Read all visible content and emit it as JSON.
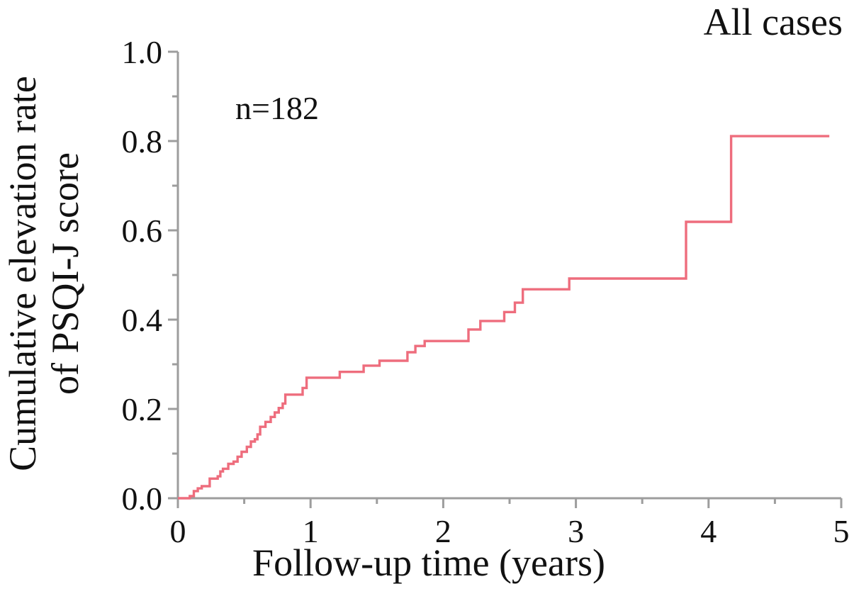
{
  "figure": {
    "title": "All cases",
    "annotation": "n=182",
    "xlabel": "Follow-up time (years)",
    "ylabel_line1": "Cumulative elevation rate",
    "ylabel_line2": "of PSQI-J score"
  },
  "colors": {
    "curve": "#ee6d7d",
    "axis": "#9d9d9d",
    "text": "#111111"
  },
  "chart_data": {
    "type": "line",
    "subtype": "step_post_cumulative_incidence",
    "title": "All cases",
    "annotation": "n=182",
    "xlabel": "Follow-up time (years)",
    "ylabel": "Cumulative elevation rate of PSQI-J score",
    "xlim": [
      0,
      5
    ],
    "ylim": [
      0,
      1
    ],
    "x_tick_labels": [
      "0",
      "1",
      "2",
      "3",
      "4",
      "5"
    ],
    "y_tick_labels": [
      "0.0",
      "0.2",
      "0.4",
      "0.6",
      "0.8",
      "1.0"
    ],
    "x_minor_tick_step": 0.5,
    "y_minor_tick_step": 0.1,
    "grid": false,
    "legend": false,
    "series": [
      {
        "name": "All cases",
        "n": 182,
        "color": "#ee6d7d",
        "step": "post",
        "points": [
          [
            0.0,
            0.0
          ],
          [
            0.09,
            0.005
          ],
          [
            0.12,
            0.016
          ],
          [
            0.15,
            0.022
          ],
          [
            0.18,
            0.027
          ],
          [
            0.24,
            0.044
          ],
          [
            0.3,
            0.049
          ],
          [
            0.32,
            0.06
          ],
          [
            0.34,
            0.066
          ],
          [
            0.38,
            0.077
          ],
          [
            0.42,
            0.082
          ],
          [
            0.45,
            0.093
          ],
          [
            0.48,
            0.104
          ],
          [
            0.52,
            0.115
          ],
          [
            0.55,
            0.127
          ],
          [
            0.58,
            0.132
          ],
          [
            0.6,
            0.143
          ],
          [
            0.62,
            0.16
          ],
          [
            0.66,
            0.171
          ],
          [
            0.7,
            0.182
          ],
          [
            0.73,
            0.192
          ],
          [
            0.76,
            0.202
          ],
          [
            0.79,
            0.212
          ],
          [
            0.81,
            0.232
          ],
          [
            0.94,
            0.247
          ],
          [
            0.97,
            0.27
          ],
          [
            1.22,
            0.283
          ],
          [
            1.4,
            0.297
          ],
          [
            1.52,
            0.308
          ],
          [
            1.73,
            0.327
          ],
          [
            1.79,
            0.341
          ],
          [
            1.86,
            0.352
          ],
          [
            2.19,
            0.378
          ],
          [
            2.28,
            0.397
          ],
          [
            2.46,
            0.417
          ],
          [
            2.54,
            0.438
          ],
          [
            2.6,
            0.468
          ],
          [
            2.95,
            0.492
          ],
          [
            3.83,
            0.619
          ],
          [
            4.17,
            0.811
          ],
          [
            4.91,
            0.811
          ]
        ]
      }
    ]
  }
}
